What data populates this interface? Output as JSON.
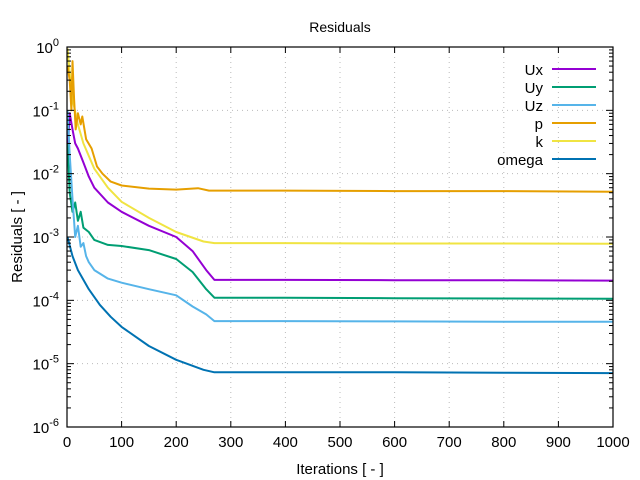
{
  "chart_data": {
    "type": "line",
    "title": "Residuals",
    "xlabel": "Iterations [ - ]",
    "ylabel": "Residuals [ - ]",
    "xlim": [
      0,
      1000
    ],
    "ylim": [
      1e-06,
      1
    ],
    "yscale": "log",
    "grid": true,
    "legend_position": "top-right",
    "xticks": [
      "0",
      "100",
      "200",
      "300",
      "400",
      "500",
      "600",
      "700",
      "800",
      "900",
      "1000"
    ],
    "yticks": [
      {
        "base": "10",
        "exp": "0"
      },
      {
        "base": "10",
        "exp": "-1"
      },
      {
        "base": "10",
        "exp": "-2"
      },
      {
        "base": "10",
        "exp": "-3"
      },
      {
        "base": "10",
        "exp": "-4"
      },
      {
        "base": "10",
        "exp": "-5"
      },
      {
        "base": "10",
        "exp": "-6"
      }
    ],
    "series": [
      {
        "name": "Ux",
        "color": "#9400d3",
        "points": [
          [
            1,
            0.02
          ],
          [
            5,
            0.09
          ],
          [
            10,
            0.05
          ],
          [
            15,
            0.03
          ],
          [
            20,
            0.025
          ],
          [
            30,
            0.015
          ],
          [
            40,
            0.009
          ],
          [
            50,
            0.006
          ],
          [
            75,
            0.0035
          ],
          [
            100,
            0.0025
          ],
          [
            150,
            0.0015
          ],
          [
            200,
            0.001
          ],
          [
            230,
            0.0006
          ],
          [
            255,
            0.0003
          ],
          [
            270,
            0.00021
          ],
          [
            400,
            0.00021
          ],
          [
            600,
            0.000208
          ],
          [
            800,
            0.000207
          ],
          [
            1000,
            0.000205
          ]
        ]
      },
      {
        "name": "Uy",
        "color": "#009e73",
        "points": [
          [
            1,
            0.03
          ],
          [
            5,
            0.005
          ],
          [
            10,
            0.0025
          ],
          [
            15,
            0.0035
          ],
          [
            20,
            0.0018
          ],
          [
            25,
            0.0025
          ],
          [
            30,
            0.0014
          ],
          [
            40,
            0.0012
          ],
          [
            50,
            0.0009
          ],
          [
            75,
            0.00075
          ],
          [
            100,
            0.00072
          ],
          [
            150,
            0.00062
          ],
          [
            200,
            0.00045
          ],
          [
            230,
            0.00028
          ],
          [
            255,
            0.00015
          ],
          [
            270,
            0.00011
          ],
          [
            400,
            0.00011
          ],
          [
            600,
            0.000108
          ],
          [
            800,
            0.000107
          ],
          [
            1000,
            0.000106
          ]
        ]
      },
      {
        "name": "Uz",
        "color": "#56b4e9",
        "points": [
          [
            1,
            0.1
          ],
          [
            5,
            0.02
          ],
          [
            10,
            0.004
          ],
          [
            15,
            0.001
          ],
          [
            20,
            0.0015
          ],
          [
            25,
            0.0007
          ],
          [
            30,
            0.0008
          ],
          [
            35,
            0.0005
          ],
          [
            40,
            0.0004
          ],
          [
            50,
            0.0003
          ],
          [
            75,
            0.00022
          ],
          [
            100,
            0.00019
          ],
          [
            150,
            0.00015
          ],
          [
            200,
            0.00012
          ],
          [
            230,
            8e-05
          ],
          [
            255,
            6e-05
          ],
          [
            270,
            4.7e-05
          ],
          [
            400,
            4.7e-05
          ],
          [
            600,
            4.65e-05
          ],
          [
            800,
            4.6e-05
          ],
          [
            1000,
            4.6e-05
          ]
        ]
      },
      {
        "name": "p",
        "color": "#e69f00",
        "points": [
          [
            1,
            0.5
          ],
          [
            5,
            0.3
          ],
          [
            8,
            0.1
          ],
          [
            10,
            0.6
          ],
          [
            13,
            0.15
          ],
          [
            16,
            0.05
          ],
          [
            20,
            0.09
          ],
          [
            25,
            0.06
          ],
          [
            28,
            0.08
          ],
          [
            35,
            0.035
          ],
          [
            45,
            0.025
          ],
          [
            55,
            0.013
          ],
          [
            65,
            0.01
          ],
          [
            80,
            0.0075
          ],
          [
            100,
            0.0065
          ],
          [
            150,
            0.0058
          ],
          [
            200,
            0.0056
          ],
          [
            240,
            0.0059
          ],
          [
            260,
            0.0054
          ],
          [
            400,
            0.0054
          ],
          [
            600,
            0.0053
          ],
          [
            800,
            0.0053
          ],
          [
            1000,
            0.0052
          ]
        ]
      },
      {
        "name": "k",
        "color": "#f0e442",
        "points": [
          [
            1,
            0.95
          ],
          [
            5,
            0.4
          ],
          [
            10,
            0.15
          ],
          [
            20,
            0.06
          ],
          [
            30,
            0.03
          ],
          [
            50,
            0.012
          ],
          [
            75,
            0.006
          ],
          [
            100,
            0.0036
          ],
          [
            150,
            0.002
          ],
          [
            200,
            0.0012
          ],
          [
            250,
            0.00085
          ],
          [
            270,
            0.0008
          ],
          [
            400,
            0.0008
          ],
          [
            600,
            0.00079
          ],
          [
            800,
            0.00079
          ],
          [
            1000,
            0.00078
          ]
        ]
      },
      {
        "name": "omega",
        "color": "#0072b2",
        "points": [
          [
            1,
            0.001
          ],
          [
            10,
            0.0005
          ],
          [
            20,
            0.0003
          ],
          [
            40,
            0.00015
          ],
          [
            60,
            8.5e-05
          ],
          [
            80,
            5.5e-05
          ],
          [
            100,
            3.8e-05
          ],
          [
            150,
            1.9e-05
          ],
          [
            200,
            1.15e-05
          ],
          [
            250,
            8e-06
          ],
          [
            270,
            7.3e-06
          ],
          [
            400,
            7.3e-06
          ],
          [
            600,
            7.3e-06
          ],
          [
            800,
            7.2e-06
          ],
          [
            1000,
            7.1e-06
          ]
        ]
      }
    ]
  }
}
